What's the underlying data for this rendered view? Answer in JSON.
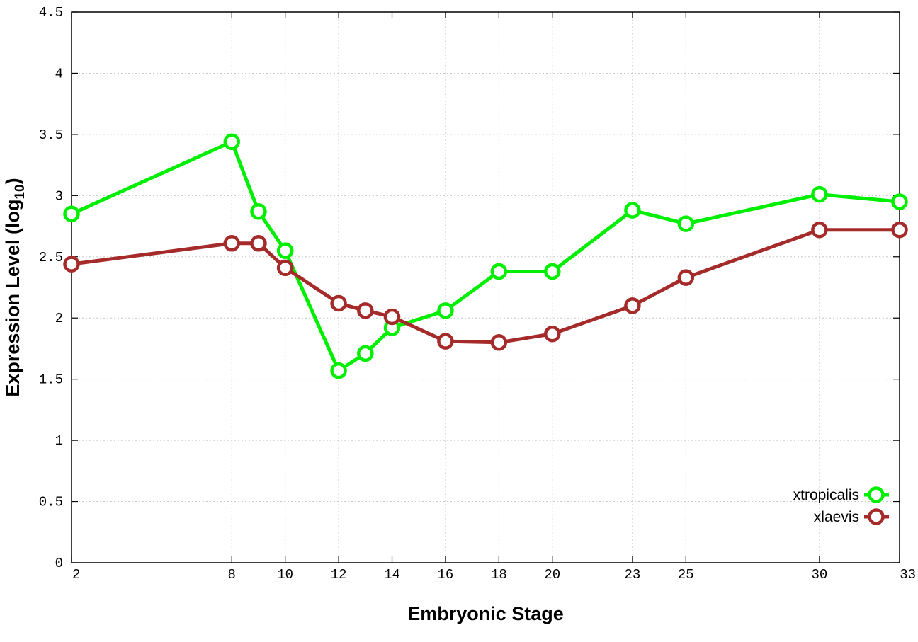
{
  "chart_data": {
    "type": "line",
    "title": "",
    "xlabel": "Embryonic Stage",
    "ylabel_main": "Expression Level (log",
    "ylabel_sub": "10",
    "ylabel_close": ")",
    "xlim": [
      2,
      33
    ],
    "ylim": [
      0,
      4.5
    ],
    "x_ticks": [
      2,
      8,
      10,
      12,
      14,
      16,
      18,
      20,
      23,
      25,
      30,
      33
    ],
    "x_tick_labels": [
      "2",
      "8",
      "10",
      "12",
      "14",
      "16",
      "18",
      "20",
      "23",
      "25",
      "30",
      "33"
    ],
    "y_ticks": [
      0,
      0.5,
      1,
      1.5,
      2,
      2.5,
      3,
      3.5,
      4,
      4.5
    ],
    "y_tick_labels": [
      "0",
      "0.5",
      "1",
      "1.5",
      "2",
      "2.5",
      "3",
      "3.5",
      "4",
      "4.5"
    ],
    "grid": true,
    "legend_position": "bottom-right",
    "series": [
      {
        "name": "xtropicalis",
        "color": "#00ee00",
        "x": [
          2,
          8,
          9,
          10,
          12,
          13,
          14,
          16,
          18,
          20,
          23,
          25,
          30,
          33
        ],
        "y": [
          2.85,
          3.44,
          2.87,
          2.55,
          1.57,
          1.71,
          1.92,
          2.06,
          2.38,
          2.38,
          2.88,
          2.77,
          3.01,
          2.95
        ]
      },
      {
        "name": "xlaevis",
        "color": "#a52a2a",
        "x": [
          2,
          8,
          9,
          10,
          12,
          13,
          14,
          16,
          18,
          20,
          23,
          25,
          30,
          33
        ],
        "y": [
          2.44,
          2.61,
          2.61,
          2.41,
          2.12,
          2.06,
          2.01,
          1.81,
          1.8,
          1.87,
          2.1,
          2.33,
          2.72,
          2.72
        ]
      }
    ]
  }
}
